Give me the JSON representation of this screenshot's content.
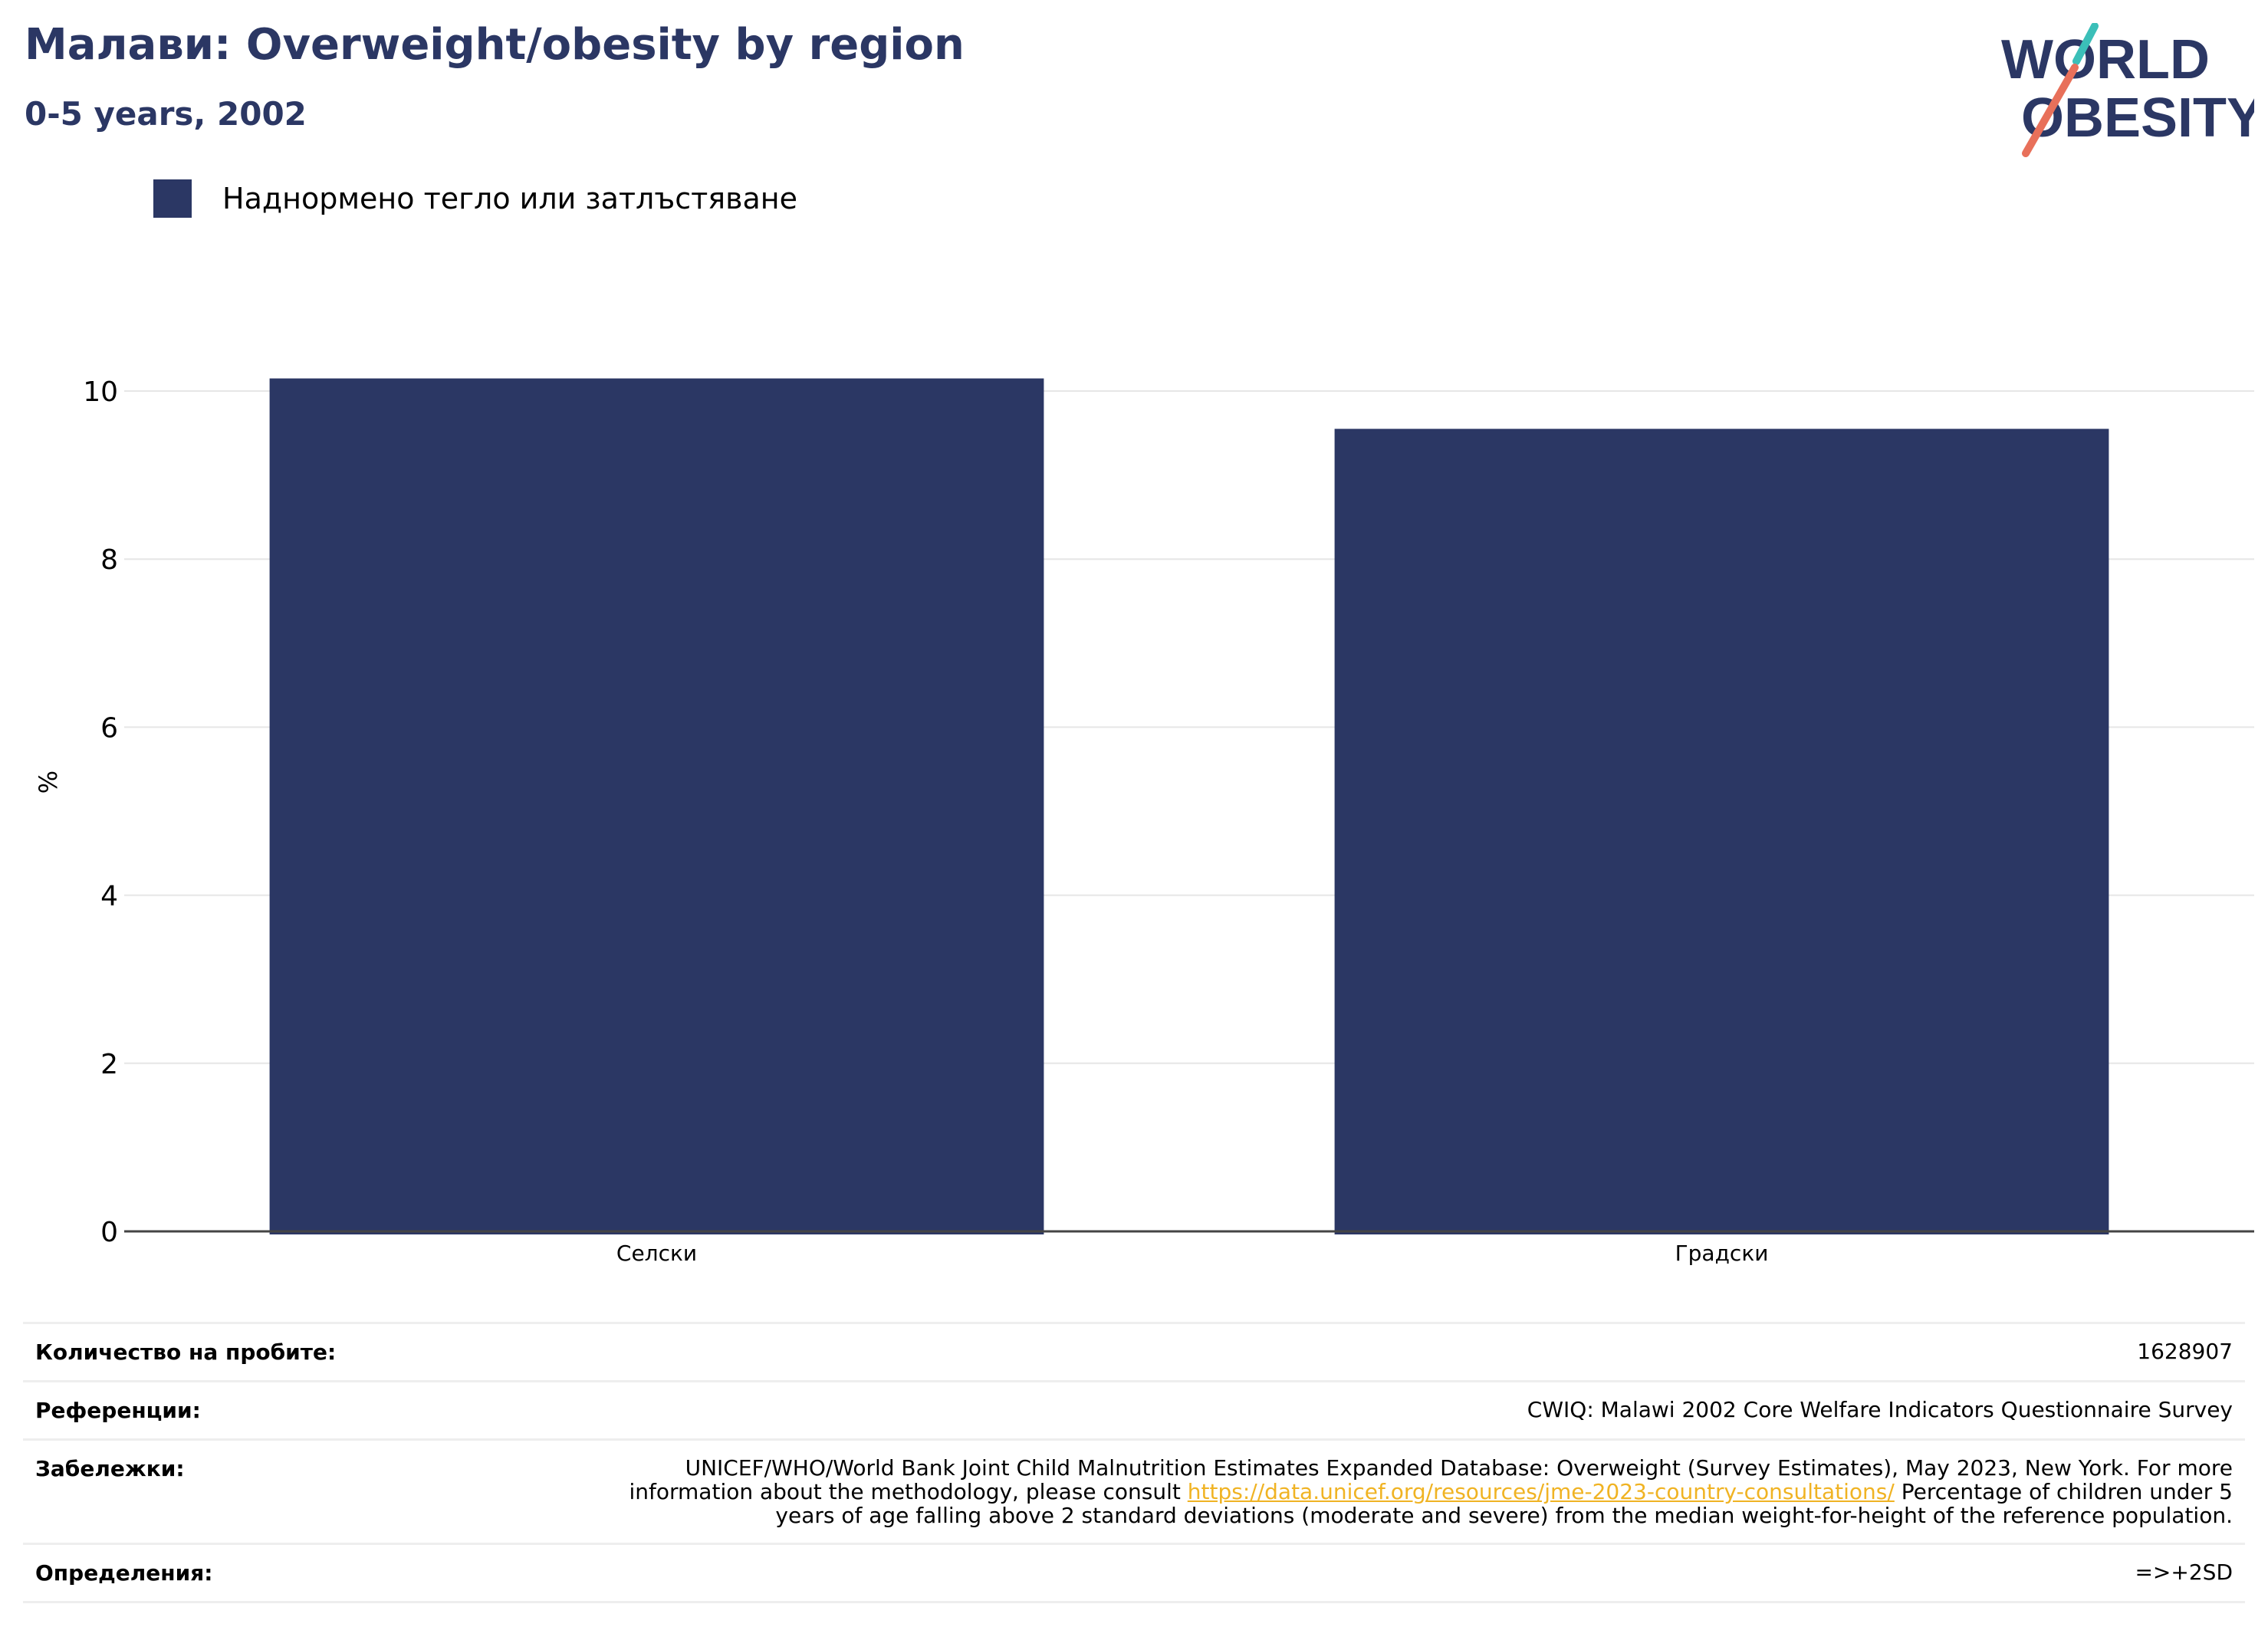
{
  "header": {
    "title": "Малави: Overweight/obesity by region",
    "subtitle": "0-5 years, 2002"
  },
  "logo": {
    "line1": "WORLD",
    "line2": "OBESITY",
    "colors": {
      "navy": "#2b3764",
      "teal": "#3bbfb8",
      "coral": "#e8705a"
    }
  },
  "legend": {
    "label": "Наднормено тегло или затлъстяване",
    "color": "#2b3764"
  },
  "chart_data": {
    "type": "bar",
    "categories": [
      "Селски",
      "Градски"
    ],
    "series": [
      {
        "name": "Наднормено тегло или затлъстяване",
        "values": [
          10.15,
          9.55
        ],
        "color": "#2b3764"
      }
    ],
    "ylabel": "%",
    "xlabel": "",
    "ylim": [
      0,
      11
    ],
    "yticks": [
      0,
      2,
      4,
      6,
      8,
      10
    ],
    "grid": true,
    "legend_position": "top-left"
  },
  "footer": {
    "sample_label": "Количество на пробите:",
    "sample_value": "1628907",
    "refs_label": "Референции:",
    "refs_value": "CWIQ: Malawi 2002 Core Welfare Indicators Questionnaire Survey",
    "notes_label": "Забележки:",
    "notes_text1": "UNICEF/WHO/World Bank Joint Child Malnutrition Estimates Expanded Database: Overweight (Survey Estimates), May 2023, New York. For more information about the methodology, please consult",
    "notes_link": "https://data.unicef.org/resources/jme-2023-country-consultations/",
    "notes_text2": "Percentage of children under 5 years of age falling above 2 standard deviations (moderate and severe) from the median weight-for-height of the reference population.",
    "defs_label": "Определения:",
    "defs_value": "=>+2SD"
  }
}
